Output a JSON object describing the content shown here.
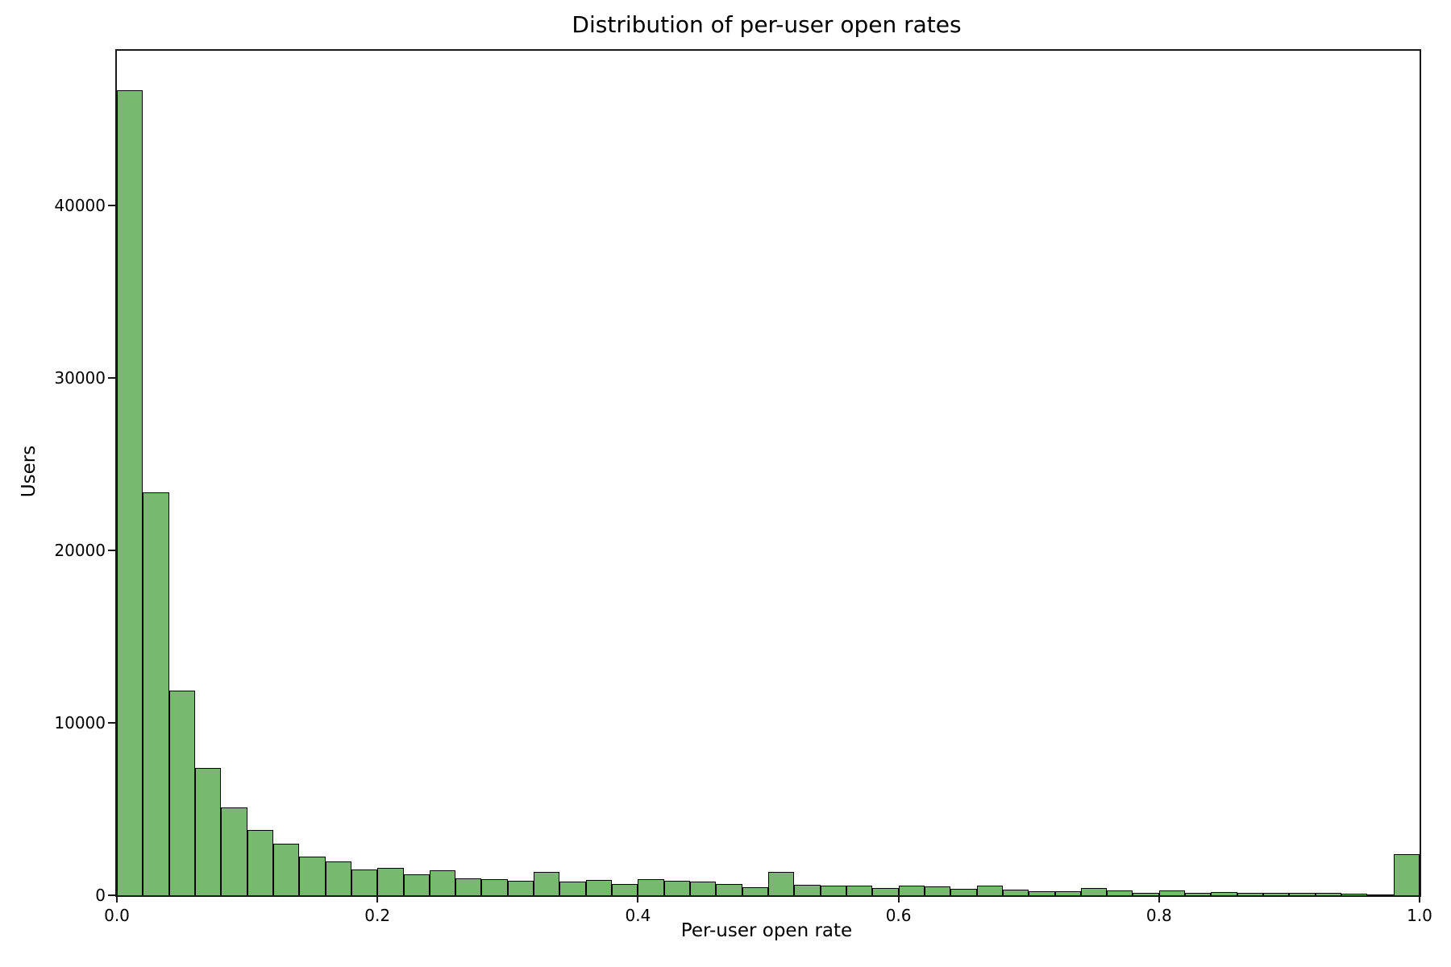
{
  "figure": {
    "title": "Distribution of per-user open rates",
    "xlabel": "Per-user open rate",
    "ylabel": "Users",
    "background_color": "#ffffff",
    "spine_color": "#1a1a1a"
  },
  "chart_data": {
    "type": "bar",
    "subtype": "histogram",
    "title": "Distribution of per-user open rates",
    "xlabel": "Per-user open rate",
    "ylabel": "Users",
    "bin_start": 0.0,
    "bin_width": 0.02,
    "n_bins": 50,
    "values": [
      46700,
      23400,
      11900,
      7400,
      5100,
      3800,
      3000,
      2250,
      1950,
      1500,
      1600,
      1200,
      1450,
      1000,
      950,
      850,
      1380,
      780,
      880,
      650,
      950,
      850,
      780,
      640,
      460,
      1350,
      620,
      560,
      550,
      400,
      570,
      520,
      370,
      560,
      310,
      250,
      250,
      400,
      300,
      150,
      280,
      120,
      200,
      120,
      120,
      120,
      120,
      100,
      60,
      2380
    ],
    "xlim": [
      0.0,
      1.0
    ],
    "ylim": [
      0,
      49000
    ],
    "x_ticks": [
      0.0,
      0.2,
      0.4,
      0.6,
      0.8,
      1.0
    ],
    "x_tick_labels": [
      "0.0",
      "0.2",
      "0.4",
      "0.6",
      "0.8",
      "1.0"
    ],
    "y_ticks": [
      0,
      10000,
      20000,
      30000,
      40000
    ],
    "y_tick_labels": [
      "0",
      "10000",
      "20000",
      "30000",
      "40000"
    ],
    "bar_color": "#76b96f",
    "bar_edge_color": "#000000",
    "grid": false,
    "legend": null
  }
}
